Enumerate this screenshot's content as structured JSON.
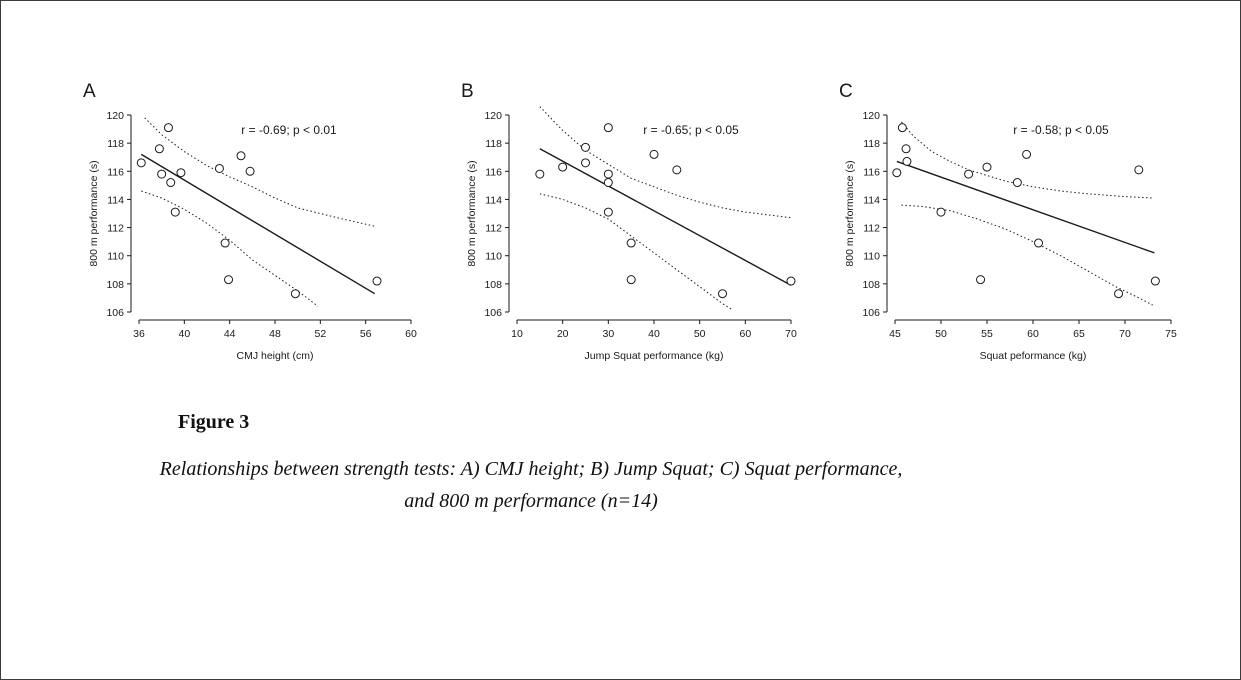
{
  "figure": {
    "title": "Figure 3",
    "caption": "Relationships between strength tests: A) CMJ height; B) Jump Squat; C) Squat performance, and 800 m performance (n=14)"
  },
  "chart_data": [
    {
      "type": "scatter",
      "panel": "A",
      "xlabel": "CMJ height (cm)",
      "ylabel": "800 m performance (s)",
      "annotation": "r = -0.69; p < 0.01",
      "xlim": [
        36,
        60
      ],
      "ylim": [
        106,
        120
      ],
      "xticks": [
        36,
        40,
        44,
        48,
        52,
        56,
        60
      ],
      "yticks": [
        106,
        108,
        110,
        112,
        114,
        116,
        118,
        120
      ],
      "points": [
        {
          "x": 36.2,
          "y": 116.6
        },
        {
          "x": 37.8,
          "y": 117.6
        },
        {
          "x": 38.0,
          "y": 115.8
        },
        {
          "x": 38.6,
          "y": 119.1
        },
        {
          "x": 38.8,
          "y": 115.2
        },
        {
          "x": 39.2,
          "y": 113.1
        },
        {
          "x": 39.7,
          "y": 115.9
        },
        {
          "x": 43.1,
          "y": 116.2
        },
        {
          "x": 43.6,
          "y": 110.9
        },
        {
          "x": 43.9,
          "y": 108.3
        },
        {
          "x": 45.0,
          "y": 117.1
        },
        {
          "x": 45.8,
          "y": 116.0
        },
        {
          "x": 49.8,
          "y": 107.3
        },
        {
          "x": 57.0,
          "y": 108.2
        }
      ],
      "fit_line": [
        {
          "x": 36.2,
          "y": 117.2
        },
        {
          "x": 56.8,
          "y": 107.3
        }
      ],
      "ci_upper": [
        {
          "x": 36.5,
          "y": 119.8
        },
        {
          "x": 38,
          "y": 118.6
        },
        {
          "x": 40,
          "y": 117.4
        },
        {
          "x": 42,
          "y": 116.4
        },
        {
          "x": 44,
          "y": 115.6
        },
        {
          "x": 46,
          "y": 114.9
        },
        {
          "x": 48,
          "y": 114.1
        },
        {
          "x": 50,
          "y": 113.4
        },
        {
          "x": 52,
          "y": 113.0
        },
        {
          "x": 54,
          "y": 112.6
        },
        {
          "x": 56.8,
          "y": 112.1
        }
      ],
      "ci_lower": [
        {
          "x": 36.2,
          "y": 114.6
        },
        {
          "x": 38,
          "y": 114.1
        },
        {
          "x": 40,
          "y": 113.3
        },
        {
          "x": 42,
          "y": 112.3
        },
        {
          "x": 44,
          "y": 111.1
        },
        {
          "x": 46,
          "y": 109.7
        },
        {
          "x": 48,
          "y": 108.6
        },
        {
          "x": 50,
          "y": 107.5
        },
        {
          "x": 51.8,
          "y": 106.4
        }
      ]
    },
    {
      "type": "scatter",
      "panel": "B",
      "xlabel": "Jump Squat performance (kg)",
      "ylabel": "800 m performance (s)",
      "annotation": "r = -0.65; p < 0.05",
      "xlim": [
        10,
        70
      ],
      "ylim": [
        106,
        120
      ],
      "xticks": [
        10,
        20,
        30,
        40,
        50,
        60,
        70
      ],
      "yticks": [
        106,
        108,
        110,
        112,
        114,
        116,
        118,
        120
      ],
      "points": [
        {
          "x": 15,
          "y": 115.8
        },
        {
          "x": 20,
          "y": 116.3
        },
        {
          "x": 25,
          "y": 117.7
        },
        {
          "x": 25,
          "y": 116.6
        },
        {
          "x": 30,
          "y": 119.1
        },
        {
          "x": 30,
          "y": 115.8
        },
        {
          "x": 30,
          "y": 115.2
        },
        {
          "x": 30,
          "y": 113.1
        },
        {
          "x": 35,
          "y": 110.9
        },
        {
          "x": 35,
          "y": 108.3
        },
        {
          "x": 40,
          "y": 117.2
        },
        {
          "x": 45,
          "y": 116.1
        },
        {
          "x": 55,
          "y": 107.3
        },
        {
          "x": 70,
          "y": 108.2
        }
      ],
      "fit_line": [
        {
          "x": 15,
          "y": 117.6
        },
        {
          "x": 70,
          "y": 107.9
        }
      ],
      "ci_upper": [
        {
          "x": 15,
          "y": 120.6
        },
        {
          "x": 20,
          "y": 118.9
        },
        {
          "x": 25,
          "y": 117.5
        },
        {
          "x": 30,
          "y": 116.5
        },
        {
          "x": 35,
          "y": 115.5
        },
        {
          "x": 40,
          "y": 114.9
        },
        {
          "x": 45,
          "y": 114.3
        },
        {
          "x": 50,
          "y": 113.8
        },
        {
          "x": 55,
          "y": 113.4
        },
        {
          "x": 60,
          "y": 113.1
        },
        {
          "x": 65,
          "y": 112.9
        },
        {
          "x": 70,
          "y": 112.7
        }
      ],
      "ci_lower": [
        {
          "x": 15,
          "y": 114.4
        },
        {
          "x": 20,
          "y": 114.0
        },
        {
          "x": 25,
          "y": 113.4
        },
        {
          "x": 30,
          "y": 112.6
        },
        {
          "x": 35,
          "y": 111.4
        },
        {
          "x": 40,
          "y": 110.2
        },
        {
          "x": 45,
          "y": 109.0
        },
        {
          "x": 50,
          "y": 107.8
        },
        {
          "x": 55,
          "y": 106.6
        },
        {
          "x": 57,
          "y": 106.2
        }
      ]
    },
    {
      "type": "scatter",
      "panel": "C",
      "xlabel": "Squat peformance (kg)",
      "ylabel": "800 m performance (s)",
      "annotation": "r = -0.58; p < 0.05",
      "xlim": [
        45,
        75
      ],
      "ylim": [
        106,
        120
      ],
      "xticks": [
        45,
        50,
        55,
        60,
        65,
        70,
        75
      ],
      "yticks": [
        106,
        108,
        110,
        112,
        114,
        116,
        118,
        120
      ],
      "points": [
        {
          "x": 45.2,
          "y": 115.9
        },
        {
          "x": 45.8,
          "y": 119.1
        },
        {
          "x": 46.2,
          "y": 117.6
        },
        {
          "x": 46.3,
          "y": 116.7
        },
        {
          "x": 50.0,
          "y": 113.1
        },
        {
          "x": 53.0,
          "y": 115.8
        },
        {
          "x": 54.3,
          "y": 108.3
        },
        {
          "x": 55.0,
          "y": 116.3
        },
        {
          "x": 58.3,
          "y": 115.2
        },
        {
          "x": 59.3,
          "y": 117.2
        },
        {
          "x": 60.6,
          "y": 110.9
        },
        {
          "x": 69.3,
          "y": 107.3
        },
        {
          "x": 71.5,
          "y": 116.1
        },
        {
          "x": 73.3,
          "y": 108.2
        }
      ],
      "fit_line": [
        {
          "x": 45.2,
          "y": 116.7
        },
        {
          "x": 73.2,
          "y": 110.2
        }
      ],
      "ci_upper": [
        {
          "x": 45.7,
          "y": 119.5
        },
        {
          "x": 47,
          "y": 118.5
        },
        {
          "x": 49,
          "y": 117.4
        },
        {
          "x": 51,
          "y": 116.7
        },
        {
          "x": 53,
          "y": 116.1
        },
        {
          "x": 55,
          "y": 115.7
        },
        {
          "x": 57,
          "y": 115.3
        },
        {
          "x": 60,
          "y": 114.9
        },
        {
          "x": 63,
          "y": 114.6
        },
        {
          "x": 66,
          "y": 114.4
        },
        {
          "x": 70,
          "y": 114.2
        },
        {
          "x": 73,
          "y": 114.1
        }
      ],
      "ci_lower": [
        {
          "x": 45.7,
          "y": 113.6
        },
        {
          "x": 48,
          "y": 113.5
        },
        {
          "x": 51,
          "y": 113.2
        },
        {
          "x": 54,
          "y": 112.6
        },
        {
          "x": 57,
          "y": 111.9
        },
        {
          "x": 60,
          "y": 111.0
        },
        {
          "x": 63,
          "y": 110.0
        },
        {
          "x": 66,
          "y": 108.9
        },
        {
          "x": 69,
          "y": 107.8
        },
        {
          "x": 71.5,
          "y": 107.0
        },
        {
          "x": 73,
          "y": 106.5
        }
      ]
    }
  ]
}
